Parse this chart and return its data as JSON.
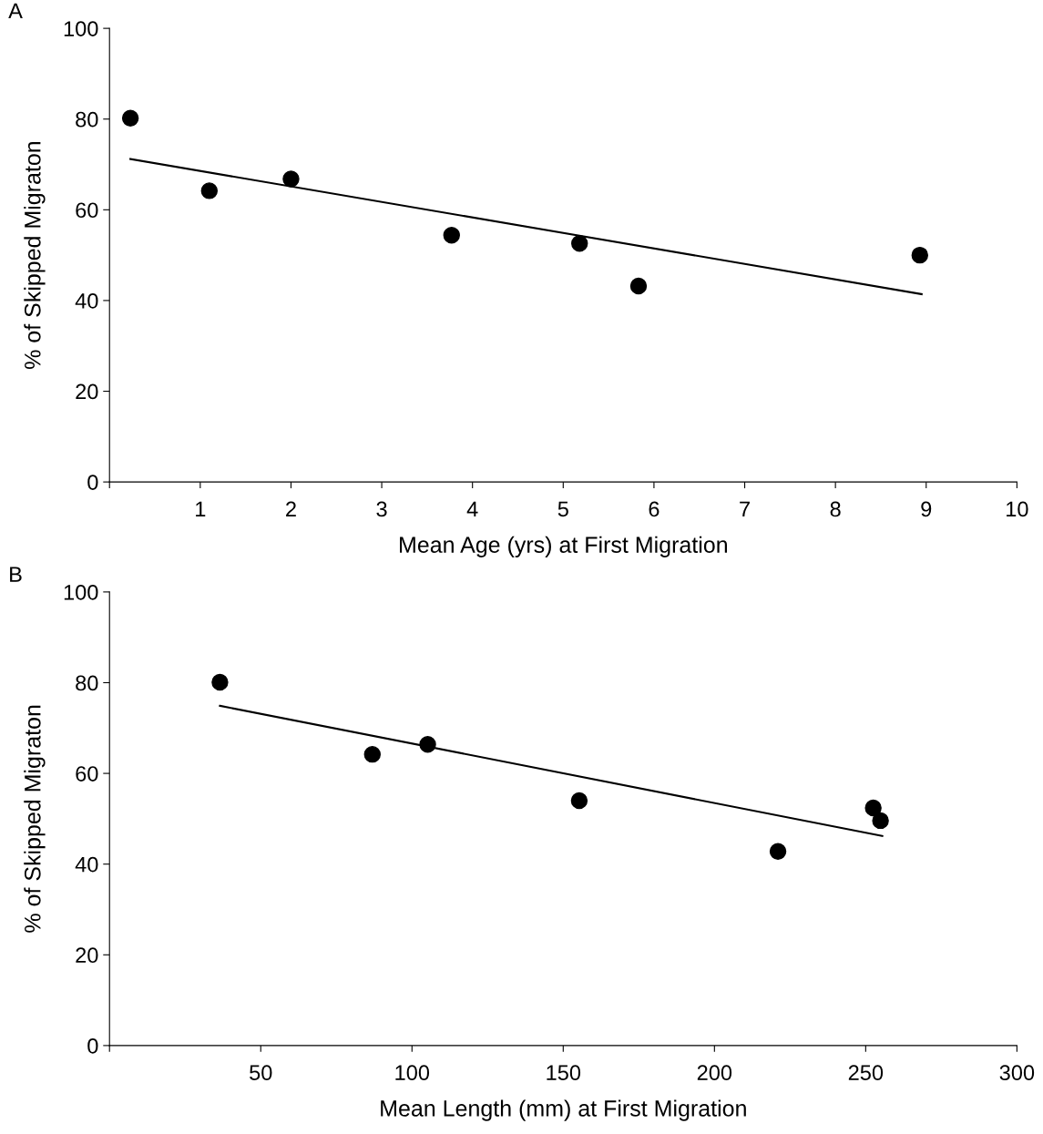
{
  "chart_data": [
    {
      "type": "scatter",
      "annotations": [
        "A"
      ],
      "xlabel": "Mean Age (yrs) at First Migration",
      "ylabel": "% of Skipped Migraton",
      "xlim": [
        0,
        10
      ],
      "ylim": [
        0,
        100
      ],
      "xticks": [
        {
          "value": 0,
          "label": null
        },
        1,
        2,
        3,
        4,
        5,
        6,
        7,
        8,
        9,
        10
      ],
      "yticks": [
        0,
        20,
        40,
        60,
        80,
        100
      ],
      "grid": false,
      "series": [
        {
          "color": "#000000",
          "marker": "circle",
          "x": [
            0.23,
            1.1,
            2.0,
            3.77,
            5.18,
            5.83,
            8.93
          ],
          "values": [
            80.2,
            64.2,
            66.8,
            54.4,
            52.6,
            43.2,
            50.0
          ]
        },
        {
          "type": "line",
          "color": "#000000",
          "marker": "none",
          "line_style": "solid",
          "x": [
            0.23,
            8.95
          ],
          "values": [
            71.2,
            41.4
          ]
        }
      ]
    },
    {
      "type": "scatter",
      "annotations": [
        "B"
      ],
      "xlabel": "Mean Length (mm) at First Migration",
      "ylabel": "% of Skipped Migraton",
      "xlim": [
        0,
        300
      ],
      "ylim": [
        0,
        100
      ],
      "xticks": [
        {
          "value": 0,
          "label": null
        },
        50,
        100,
        150,
        200,
        250,
        300
      ],
      "yticks": [
        0,
        20,
        40,
        60,
        80,
        100
      ],
      "grid": false,
      "series": [
        {
          "color": "#000000",
          "marker": "circle",
          "x": [
            36.5,
            86.9,
            105.2,
            155.3,
            221,
            252.5,
            254.9
          ],
          "values": [
            80.1,
            64.2,
            66.4,
            54.0,
            42.8,
            52.4,
            49.6
          ]
        },
        {
          "type": "line",
          "color": "#000000",
          "marker": "none",
          "line_style": "solid",
          "x": [
            36.5,
            255.5
          ],
          "values": [
            74.9,
            46.2
          ]
        }
      ]
    }
  ]
}
